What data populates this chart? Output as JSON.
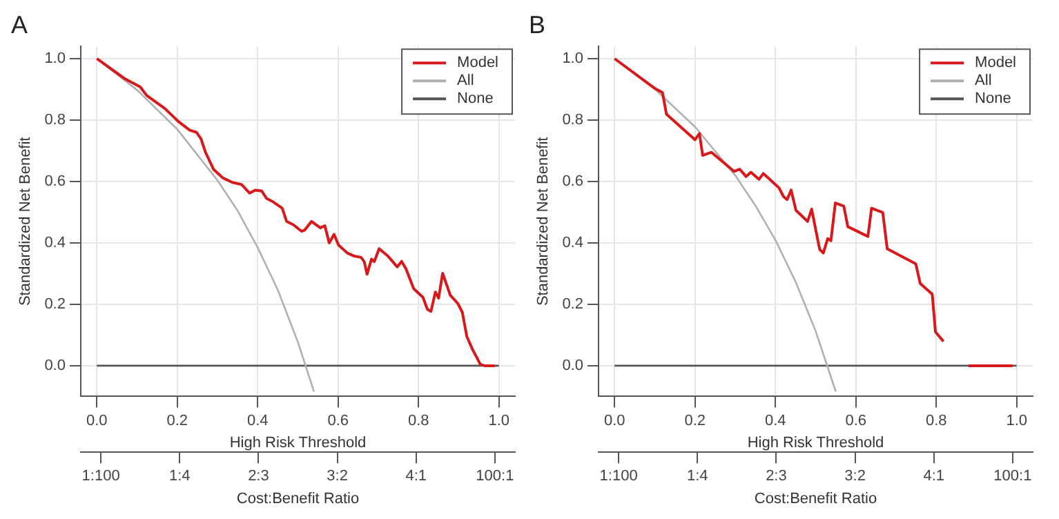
{
  "chart_data": [
    {
      "type": "line",
      "title": "A",
      "xlabel": "High Risk Threshold",
      "ylabel": "Standardized Net Benefit",
      "x2label": "Cost:Benefit Ratio",
      "xlim": [
        -0.04,
        1.04
      ],
      "ylim": [
        -0.1,
        1.04
      ],
      "xticks": [
        {
          "value": 0,
          "label": "0.0"
        },
        {
          "value": 0.2,
          "label": "0.2"
        },
        {
          "value": 0.4,
          "label": "0.4"
        },
        {
          "value": 0.6,
          "label": "0.6"
        },
        {
          "value": 0.8,
          "label": "0.8"
        },
        {
          "value": 1,
          "label": "1.0"
        }
      ],
      "yticks": [
        {
          "value": 0,
          "label": "0.0"
        },
        {
          "value": 0.2,
          "label": "0.2"
        },
        {
          "value": 0.4,
          "label": "0.4"
        },
        {
          "value": 0.6,
          "label": "0.6"
        },
        {
          "value": 0.8,
          "label": "0.8"
        },
        {
          "value": 1,
          "label": "1.0"
        }
      ],
      "annotations": [
        "1:100",
        "1:4",
        "2:3",
        "3:2",
        "4:1",
        "100:1"
      ],
      "grid": true,
      "legend": "top right",
      "marker": "none",
      "line_style": "solid",
      "series": [
        {
          "name": "Model",
          "color": "#d7191c",
          "x": [
            0,
            0.068,
            0.108,
            0.124,
            0.169,
            0.203,
            0.231,
            0.248,
            0.259,
            0.27,
            0.29,
            0.313,
            0.337,
            0.36,
            0.38,
            0.394,
            0.41,
            0.422,
            0.438,
            0.461,
            0.472,
            0.489,
            0.509,
            0.517,
            0.534,
            0.556,
            0.567,
            0.578,
            0.59,
            0.601,
            0.623,
            0.64,
            0.657,
            0.665,
            0.672,
            0.683,
            0.69,
            0.702,
            0.724,
            0.747,
            0.758,
            0.769,
            0.788,
            0.811,
            0.822,
            0.831,
            0.842,
            0.85,
            0.86,
            0.879,
            0.898,
            0.909,
            0.92,
            0.934,
            0.954,
            0.965,
            0.99
          ],
          "values": [
            1,
            0.936,
            0.908,
            0.88,
            0.838,
            0.795,
            0.767,
            0.76,
            0.739,
            0.696,
            0.64,
            0.612,
            0.597,
            0.59,
            0.562,
            0.572,
            0.569,
            0.545,
            0.534,
            0.513,
            0.47,
            0.459,
            0.438,
            0.442,
            0.47,
            0.449,
            0.456,
            0.4,
            0.428,
            0.393,
            0.367,
            0.357,
            0.353,
            0.339,
            0.298,
            0.347,
            0.339,
            0.381,
            0.357,
            0.322,
            0.34,
            0.315,
            0.251,
            0.223,
            0.184,
            0.177,
            0.24,
            0.22,
            0.301,
            0.23,
            0.202,
            0.174,
            0.096,
            0.054,
            0.004,
            0,
            0
          ]
        },
        {
          "name": "All",
          "color": "#b0b0b0",
          "x": [
            0,
            0.1,
            0.2,
            0.3,
            0.35,
            0.4,
            0.45,
            0.5,
            0.54
          ],
          "values": [
            1,
            0.898,
            0.77,
            0.604,
            0.505,
            0.385,
            0.247,
            0.077,
            -0.084
          ]
        },
        {
          "name": "None",
          "color": "#555555",
          "x": [
            0,
            1
          ],
          "values": [
            0,
            0
          ]
        }
      ]
    },
    {
      "type": "line",
      "title": "B",
      "xlabel": "High Risk Threshold",
      "ylabel": "Standardized Net Benefit",
      "x2label": "Cost:Benefit Ratio",
      "xlim": [
        -0.04,
        1.04
      ],
      "ylim": [
        -0.1,
        1.04
      ],
      "xticks": [
        {
          "value": 0,
          "label": "0.0"
        },
        {
          "value": 0.2,
          "label": "0.2"
        },
        {
          "value": 0.4,
          "label": "0.4"
        },
        {
          "value": 0.6,
          "label": "0.6"
        },
        {
          "value": 0.8,
          "label": "0.8"
        },
        {
          "value": 1,
          "label": "1.0"
        }
      ],
      "yticks": [
        {
          "value": 0,
          "label": "0.0"
        },
        {
          "value": 0.2,
          "label": "0.2"
        },
        {
          "value": 0.4,
          "label": "0.4"
        },
        {
          "value": 0.6,
          "label": "0.6"
        },
        {
          "value": 0.8,
          "label": "0.8"
        },
        {
          "value": 1,
          "label": "1.0"
        }
      ],
      "annotations": [
        "1:100",
        "1:4",
        "2:3",
        "3:2",
        "4:1",
        "100:1"
      ],
      "grid": true,
      "legend": "top right",
      "marker": "none",
      "line_style": "solid",
      "series": [
        {
          "name": "Model",
          "color": "#d7191c",
          "x": [
            0,
            0.099,
            0.119,
            0.129,
            0.2,
            0.211,
            0.219,
            0.241,
            0.297,
            0.311,
            0.327,
            0.339,
            0.359,
            0.37,
            0.409,
            0.42,
            0.429,
            0.439,
            0.451,
            0.48,
            0.49,
            0.51,
            0.519,
            0.53,
            0.538,
            0.549,
            0.57,
            0.58,
            0.63,
            0.639,
            0.667,
            0.678,
            0.749,
            0.76,
            0.79,
            0.798,
            0.818,
            0.835,
            0.874,
            0.88,
            0.99
          ],
          "values": [
            1,
            0.904,
            0.89,
            0.819,
            0.736,
            0.756,
            0.685,
            0.695,
            0.633,
            0.64,
            0.616,
            0.63,
            0.607,
            0.626,
            0.579,
            0.551,
            0.541,
            0.572,
            0.506,
            0.47,
            0.51,
            0.379,
            0.367,
            0.414,
            0.407,
            0.53,
            0.52,
            0.453,
            0.421,
            0.513,
            0.499,
            0.381,
            0.332,
            0.268,
            0.233,
            0.11,
            0.079,
            null,
            null,
            0,
            0
          ]
        },
        {
          "name": "All",
          "color": "#b0b0b0",
          "x": [
            0,
            0.1,
            0.2,
            0.3,
            0.35,
            0.4,
            0.45,
            0.5,
            0.55
          ],
          "values": [
            1,
            0.901,
            0.778,
            0.62,
            0.522,
            0.409,
            0.274,
            0.113,
            -0.084
          ]
        },
        {
          "name": "None",
          "color": "#555555",
          "x": [
            0,
            1
          ],
          "values": [
            0,
            0
          ]
        }
      ]
    }
  ]
}
